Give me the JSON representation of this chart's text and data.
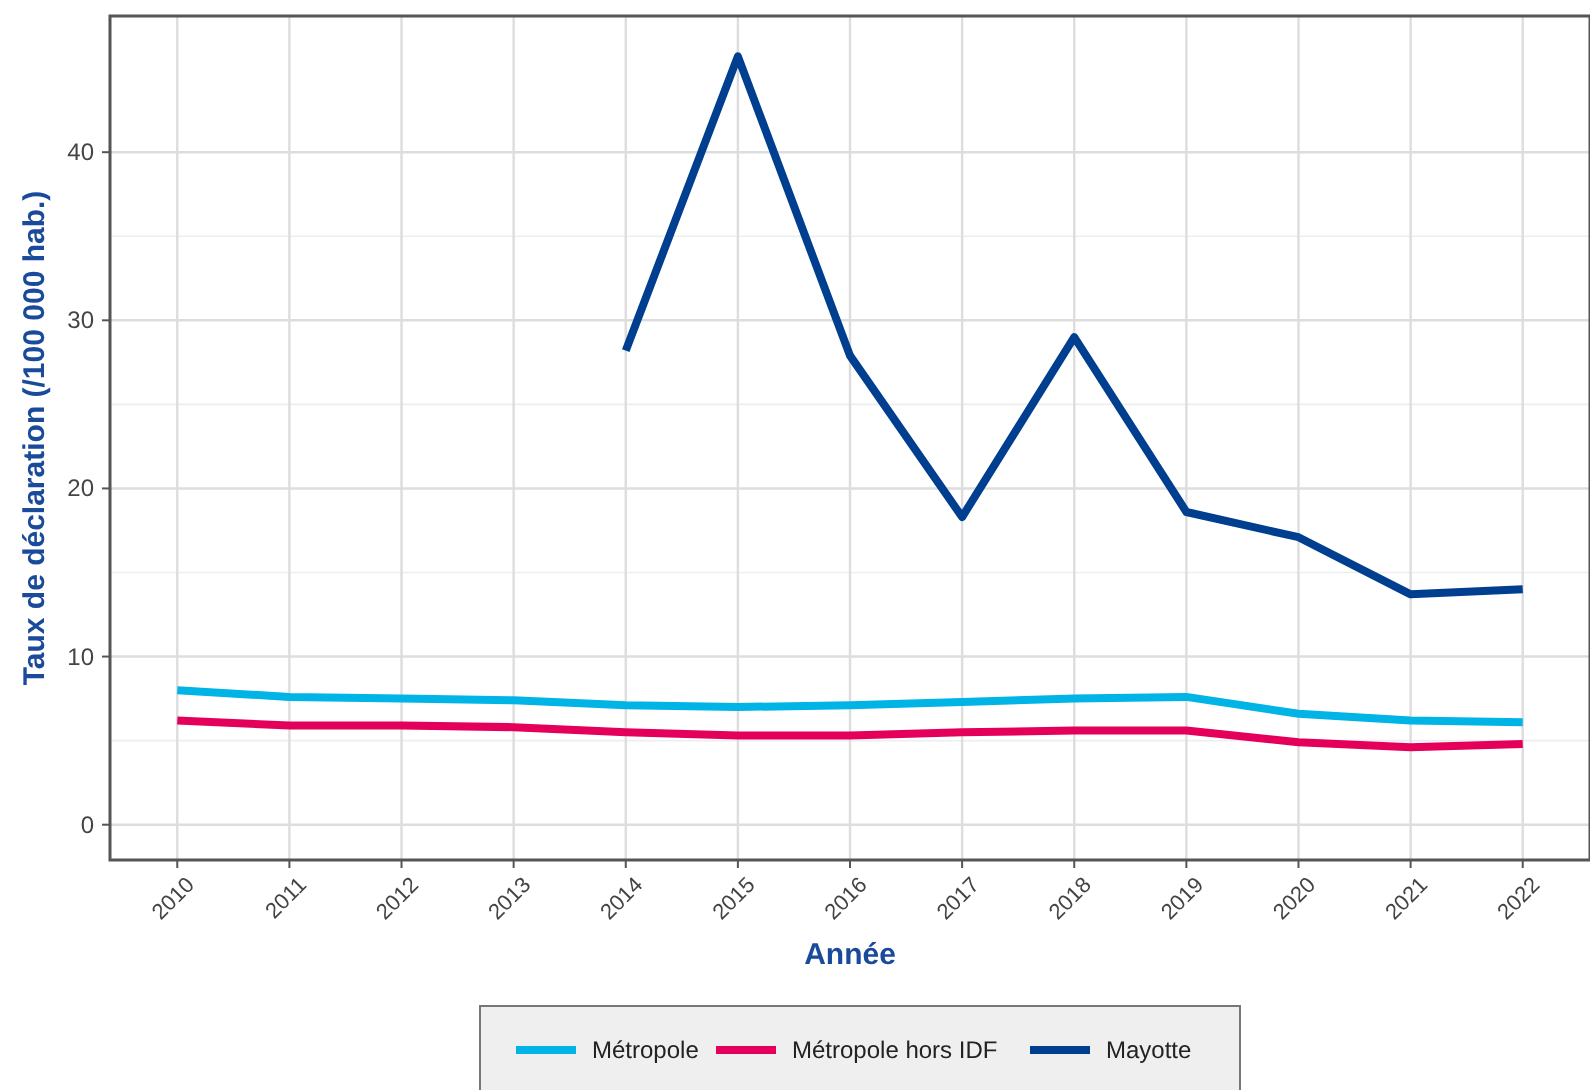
{
  "chart_data": {
    "type": "line",
    "xlabel": "Année",
    "ylabel": "Taux de déclaration (/100 000 hab.)",
    "x": [
      2010,
      2011,
      2012,
      2013,
      2014,
      2015,
      2016,
      2017,
      2018,
      2019,
      2020,
      2021,
      2022
    ],
    "xlim": [
      2009.4,
      2022.6
    ],
    "xticks": [
      2010,
      2011,
      2012,
      2013,
      2014,
      2015,
      2016,
      2017,
      2018,
      2019,
      2020,
      2021,
      2022
    ],
    "ylim": [
      -2.1,
      48.1
    ],
    "yticks": [
      0,
      10,
      20,
      30,
      40
    ],
    "grid": true,
    "legend": "bottom",
    "line_style": "solid",
    "marker": "none",
    "series": [
      {
        "name": "Métropole",
        "color": "#00b4e6",
        "values": [
          8.0,
          7.6,
          7.5,
          7.4,
          7.1,
          7.0,
          7.1,
          7.3,
          7.5,
          7.6,
          6.6,
          6.2,
          6.1
        ]
      },
      {
        "name": "Métropole hors IDF",
        "color": "#e4005a",
        "values": [
          6.2,
          5.9,
          5.9,
          5.8,
          5.5,
          5.3,
          5.3,
          5.5,
          5.6,
          5.6,
          4.9,
          4.6,
          4.8
        ]
      },
      {
        "name": "Mayotte",
        "color": "#003f8f",
        "values": [
          null,
          null,
          null,
          null,
          28.2,
          45.7,
          27.9,
          18.3,
          29.0,
          18.6,
          17.1,
          13.7,
          14.0
        ]
      }
    ]
  }
}
